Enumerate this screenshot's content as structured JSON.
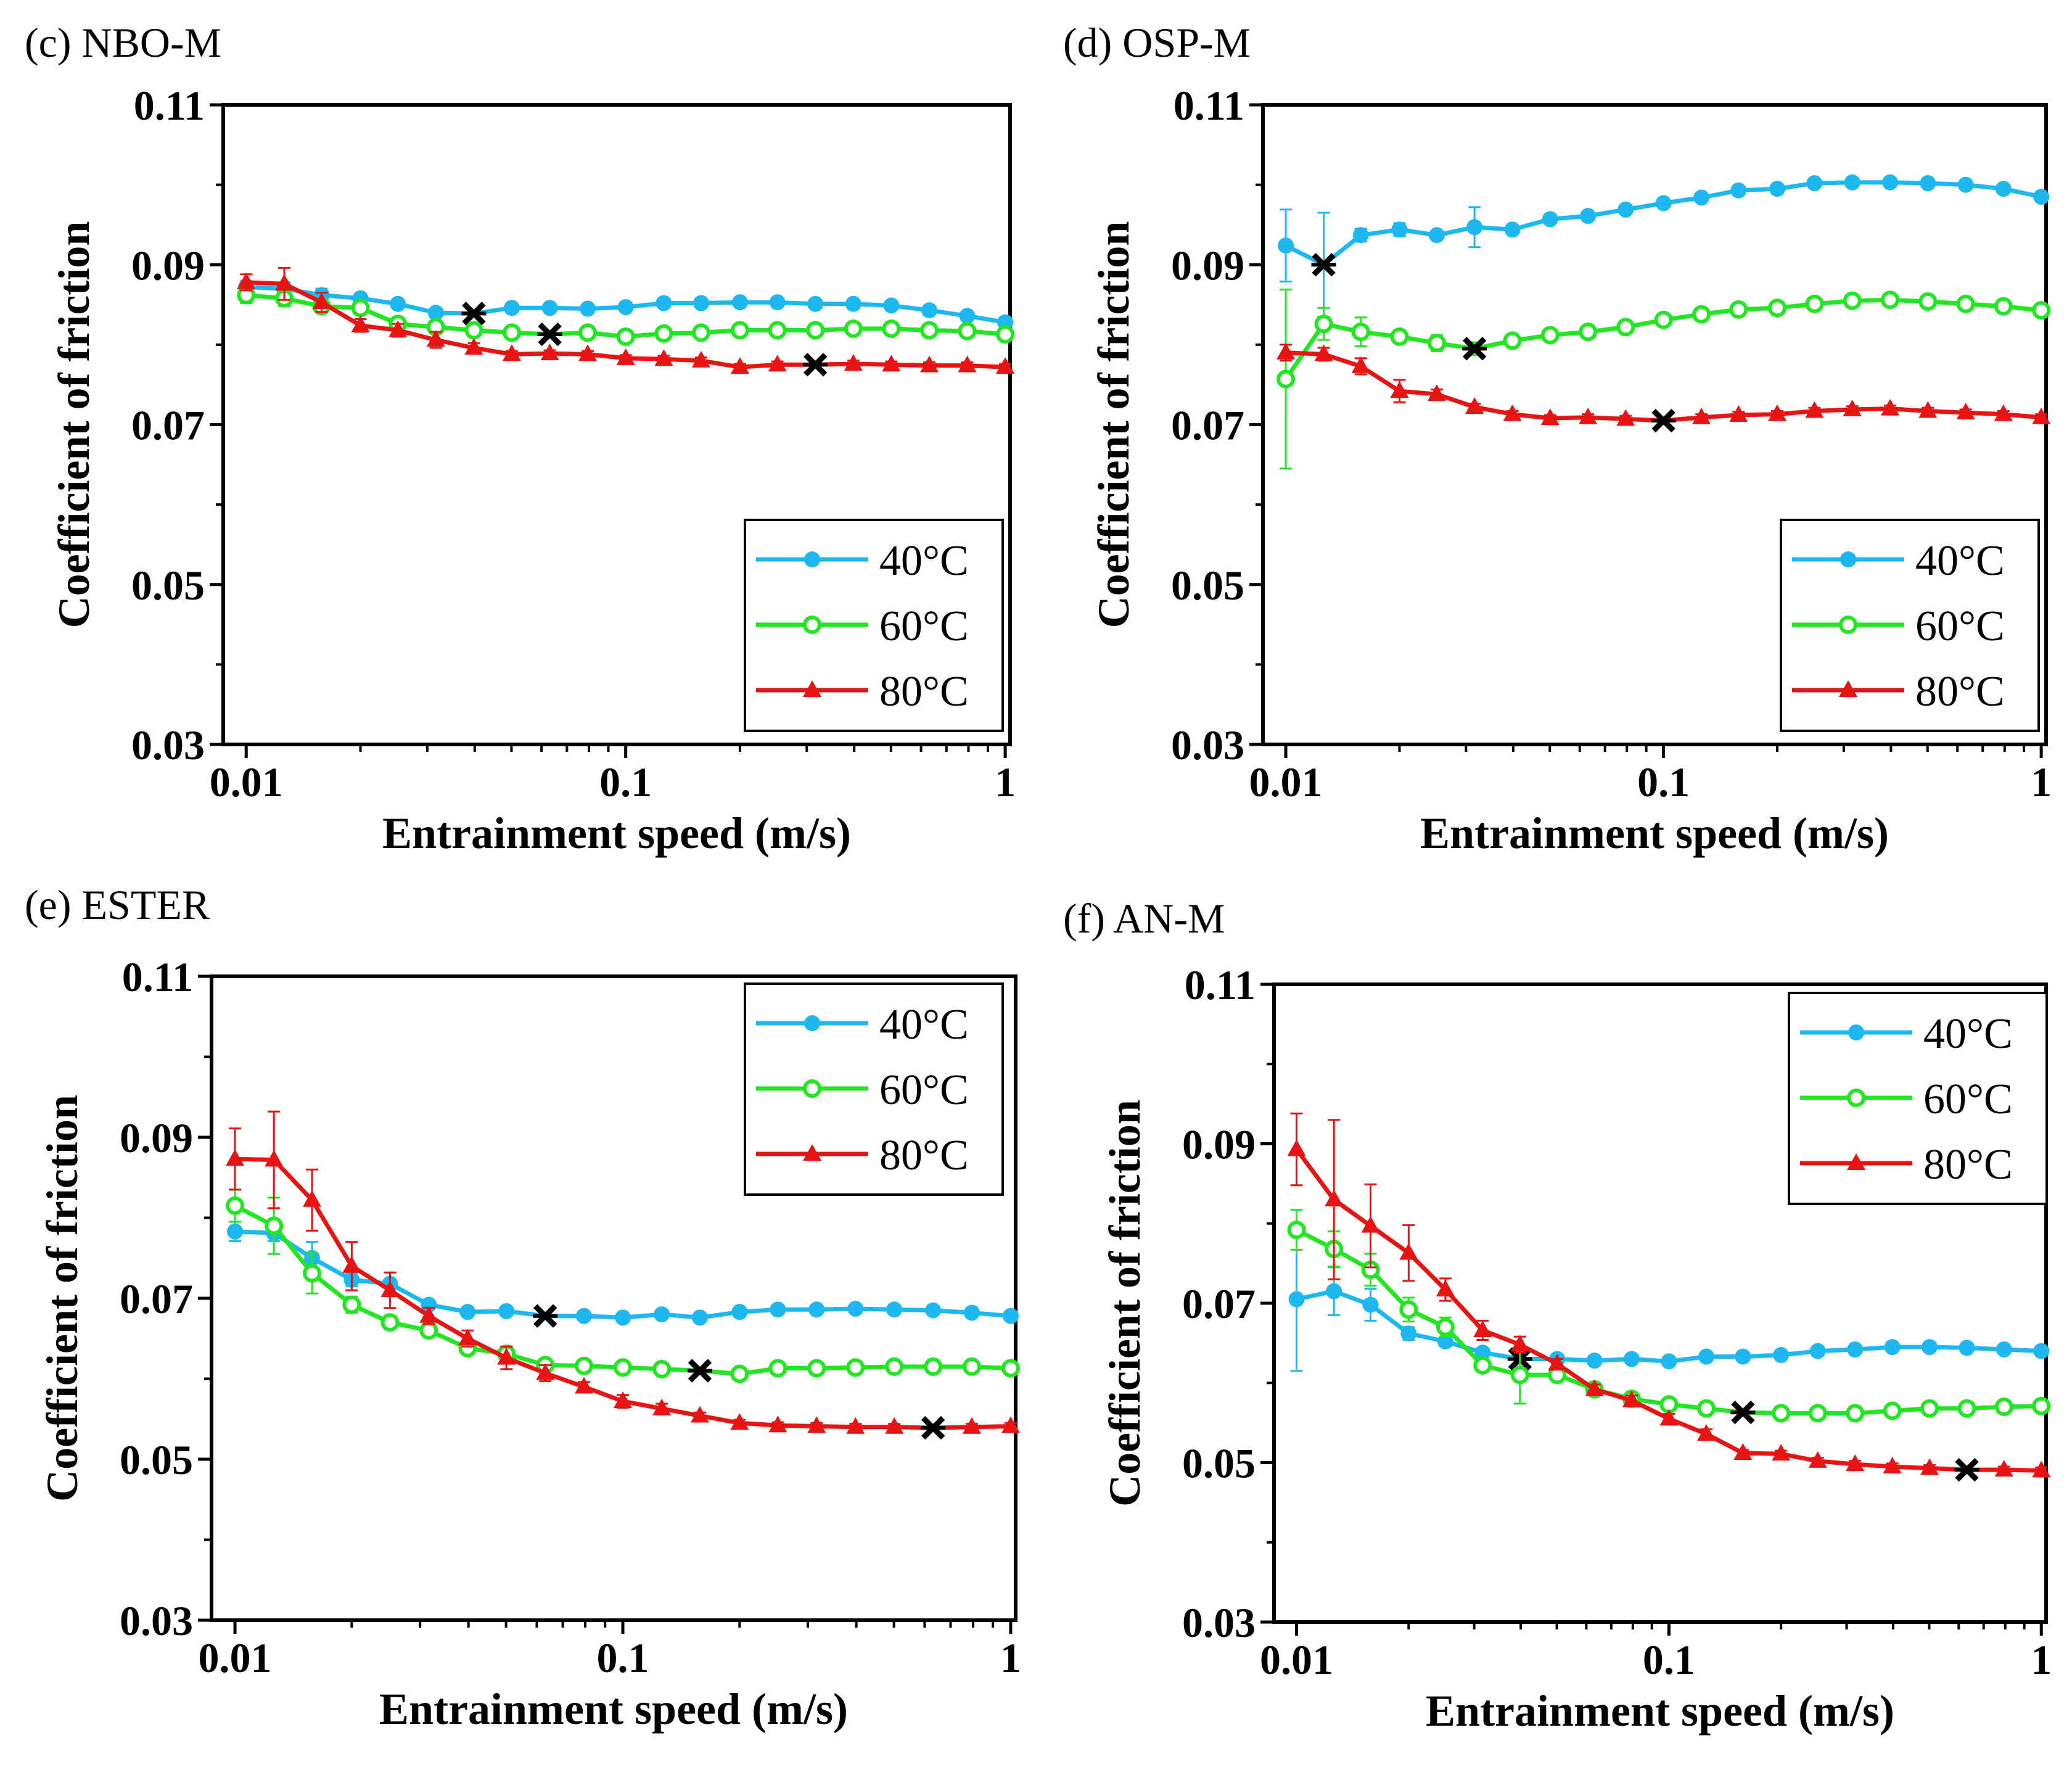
{
  "colors": {
    "s40": "#1EB8F0",
    "s60": "#22E622",
    "s80": "#E81414",
    "marker": "#000000"
  },
  "chart_data": [
    {
      "type": "line",
      "title": "(c) NBO-M",
      "xlabel": "Entrainment speed (m/s)",
      "ylabel": "Coefficient of friction",
      "xscale": "log",
      "xlim": [
        0.0087,
        1.03
      ],
      "ylim": [
        0.03,
        0.11
      ],
      "xticks": [
        0.01,
        0.1,
        1
      ],
      "xtick_labels": [
        "0.01",
        "0.1",
        "1"
      ],
      "yticks": [
        0.03,
        0.05,
        0.07,
        0.09,
        0.11
      ],
      "ytick_labels": [
        "0.03",
        "0.05",
        "0.07",
        "0.09",
        "0.11"
      ],
      "legend_position": "bottom-right",
      "x": [
        0.01,
        0.0126,
        0.0158,
        0.02,
        0.0251,
        0.0316,
        0.0398,
        0.0501,
        0.0631,
        0.0794,
        0.1,
        0.126,
        0.158,
        0.2,
        0.251,
        0.316,
        0.398,
        0.501,
        0.631,
        0.794,
        1.0
      ],
      "series": [
        {
          "name": "40°C",
          "marker": "circle",
          "values": [
            0.0872,
            0.087,
            0.0862,
            0.0858,
            0.0851,
            0.084,
            0.0839,
            0.0846,
            0.0846,
            0.0845,
            0.0847,
            0.0852,
            0.0852,
            0.0853,
            0.0853,
            0.0851,
            0.0851,
            0.0849,
            0.0843,
            0.0836,
            0.0828
          ],
          "errors": [
            0.0008,
            0.0008,
            0.0008,
            0.0006,
            0.0005,
            0.0004,
            0.0004,
            0.0004,
            0.0004,
            0.0004,
            0.0004,
            0.0004,
            0.0004,
            0.0004,
            0.0004,
            0.0004,
            0.0004,
            0.0004,
            0.0004,
            0.0004,
            0.0004
          ],
          "starred_x": 0.0398
        },
        {
          "name": "60°C",
          "marker": "open-circle",
          "values": [
            0.0862,
            0.0858,
            0.0848,
            0.0846,
            0.0826,
            0.0822,
            0.0818,
            0.0815,
            0.0813,
            0.0815,
            0.081,
            0.0814,
            0.0815,
            0.0818,
            0.0818,
            0.0818,
            0.082,
            0.082,
            0.0818,
            0.0817,
            0.0813
          ],
          "errors": [
            0.001,
            0.001,
            0.0008,
            0.0006,
            0.0005,
            0.0004,
            0.0004,
            0.0004,
            0.0004,
            0.0004,
            0.0004,
            0.0004,
            0.0004,
            0.0004,
            0.0004,
            0.0004,
            0.0004,
            0.0004,
            0.0004,
            0.0004,
            0.0004
          ],
          "starred_x": 0.0631
        },
        {
          "name": "80°C",
          "marker": "triangle",
          "values": [
            0.0878,
            0.0876,
            0.0853,
            0.0824,
            0.0818,
            0.0806,
            0.0796,
            0.0788,
            0.0789,
            0.0788,
            0.0783,
            0.0782,
            0.078,
            0.0772,
            0.0775,
            0.0775,
            0.0776,
            0.0775,
            0.0774,
            0.0774,
            0.0772
          ],
          "errors": [
            0.001,
            0.002,
            0.0012,
            0.0008,
            0.0008,
            0.001,
            0.0006,
            0.0004,
            0.0004,
            0.0004,
            0.0004,
            0.0004,
            0.0004,
            0.0004,
            0.0004,
            0.0004,
            0.0004,
            0.0004,
            0.0004,
            0.0004,
            0.0004
          ],
          "starred_x": 0.316
        }
      ]
    },
    {
      "type": "line",
      "title": "(d) OSP-M",
      "xlabel": "Entrainment speed (m/s)",
      "ylabel": "Coefficient of friction",
      "xscale": "log",
      "xlim": [
        0.0087,
        1.03
      ],
      "ylim": [
        0.03,
        0.11
      ],
      "xticks": [
        0.01,
        0.1,
        1
      ],
      "xtick_labels": [
        "0.01",
        "0.1",
        "1"
      ],
      "yticks": [
        0.03,
        0.05,
        0.07,
        0.09,
        0.11
      ],
      "ytick_labels": [
        "0.03",
        "0.05",
        "0.07",
        "0.09",
        "0.11"
      ],
      "legend_position": "bottom-right",
      "x": [
        0.01,
        0.0126,
        0.0158,
        0.02,
        0.0251,
        0.0316,
        0.0398,
        0.0501,
        0.0631,
        0.0794,
        0.1,
        0.126,
        0.158,
        0.2,
        0.251,
        0.316,
        0.398,
        0.501,
        0.631,
        0.794,
        1.0
      ],
      "series": [
        {
          "name": "40°C",
          "marker": "circle",
          "values": [
            0.0924,
            0.09,
            0.0937,
            0.0944,
            0.0937,
            0.0947,
            0.0944,
            0.0957,
            0.0961,
            0.0969,
            0.0977,
            0.0984,
            0.0993,
            0.0995,
            0.1002,
            0.1003,
            0.1003,
            0.1002,
            0.1,
            0.0995,
            0.0985
          ],
          "errors": [
            0.0045,
            0.0065,
            0.0008,
            0.0008,
            0.0004,
            0.0025,
            0.0004,
            0.0004,
            0.0004,
            0.0004,
            0.0004,
            0.0004,
            0.0004,
            0.0004,
            0.0004,
            0.0004,
            0.0004,
            0.0004,
            0.0004,
            0.0004,
            0.0004
          ],
          "starred_x": 0.0126
        },
        {
          "name": "60°C",
          "marker": "open-circle",
          "values": [
            0.0757,
            0.0826,
            0.0816,
            0.081,
            0.0802,
            0.0795,
            0.0805,
            0.0812,
            0.0816,
            0.0822,
            0.0831,
            0.0838,
            0.0844,
            0.0846,
            0.0851,
            0.0855,
            0.0856,
            0.0854,
            0.0851,
            0.0848,
            0.0843
          ],
          "errors": [
            0.0112,
            0.002,
            0.0018,
            0.0008,
            0.001,
            0.0008,
            0.0004,
            0.0004,
            0.0004,
            0.0004,
            0.0004,
            0.0004,
            0.0004,
            0.0004,
            0.0004,
            0.0004,
            0.0004,
            0.0004,
            0.0004,
            0.0004,
            0.0004
          ],
          "starred_x": 0.0316
        },
        {
          "name": "80°C",
          "marker": "triangle",
          "values": [
            0.079,
            0.0788,
            0.0773,
            0.0742,
            0.0738,
            0.0722,
            0.0713,
            0.0708,
            0.0709,
            0.0707,
            0.0705,
            0.0709,
            0.0712,
            0.0713,
            0.0717,
            0.0719,
            0.072,
            0.0717,
            0.0715,
            0.0713,
            0.0709
          ],
          "errors": [
            0.001,
            0.0008,
            0.001,
            0.0014,
            0.0006,
            0.0004,
            0.0004,
            0.0004,
            0.0004,
            0.0004,
            0.0004,
            0.0004,
            0.0004,
            0.0004,
            0.0004,
            0.0004,
            0.0004,
            0.0004,
            0.0004,
            0.0004,
            0.0004
          ],
          "starred_x": 0.1
        }
      ]
    },
    {
      "type": "line",
      "title": "(e) ESTER",
      "xlabel": "Entrainment speed (m/s)",
      "ylabel": "Coefficient of friction",
      "xscale": "log",
      "xlim": [
        0.0087,
        1.03
      ],
      "ylim": [
        0.03,
        0.11
      ],
      "xticks": [
        0.01,
        0.1,
        1
      ],
      "xtick_labels": [
        "0.01",
        "0.1",
        "1"
      ],
      "yticks": [
        0.03,
        0.05,
        0.07,
        0.09,
        0.11
      ],
      "ytick_labels": [
        "0.03",
        "0.05",
        "0.07",
        "0.09",
        "0.11"
      ],
      "legend_position": "top-right",
      "x": [
        0.01,
        0.0126,
        0.0158,
        0.02,
        0.0251,
        0.0316,
        0.0398,
        0.0501,
        0.0631,
        0.0794,
        0.1,
        0.126,
        0.158,
        0.2,
        0.251,
        0.316,
        0.398,
        0.501,
        0.631,
        0.794,
        1.0
      ],
      "series": [
        {
          "name": "40°C",
          "marker": "circle",
          "values": [
            0.0783,
            0.0781,
            0.075,
            0.0723,
            0.0718,
            0.0692,
            0.0683,
            0.0684,
            0.0678,
            0.0678,
            0.0676,
            0.068,
            0.0676,
            0.0683,
            0.0686,
            0.0686,
            0.0687,
            0.0686,
            0.0685,
            0.0682,
            0.0678
          ],
          "errors": [
            0.0012,
            0.001,
            0.002,
            0.0008,
            0.0005,
            0.0004,
            0.0004,
            0.0004,
            0.0004,
            0.0004,
            0.0004,
            0.0004,
            0.0004,
            0.0004,
            0.0004,
            0.0004,
            0.0004,
            0.0004,
            0.0004,
            0.0004,
            0.0004
          ],
          "starred_x": 0.0631
        },
        {
          "name": "60°C",
          "marker": "open-circle",
          "values": [
            0.0815,
            0.079,
            0.0731,
            0.0692,
            0.067,
            0.066,
            0.0638,
            0.0631,
            0.0617,
            0.0616,
            0.0614,
            0.0612,
            0.061,
            0.0606,
            0.0613,
            0.0613,
            0.0614,
            0.0615,
            0.0615,
            0.0615,
            0.0613
          ],
          "errors": [
            0.002,
            0.0035,
            0.0025,
            0.001,
            0.0008,
            0.0006,
            0.0004,
            0.0004,
            0.0004,
            0.0004,
            0.0004,
            0.0004,
            0.0004,
            0.0004,
            0.0004,
            0.0004,
            0.0004,
            0.0004,
            0.0004,
            0.0004,
            0.0004
          ],
          "starred_x": 0.158
        },
        {
          "name": "80°C",
          "marker": "triangle",
          "values": [
            0.0873,
            0.0872,
            0.0822,
            0.074,
            0.071,
            0.0678,
            0.065,
            0.0626,
            0.0607,
            0.059,
            0.0572,
            0.0563,
            0.0554,
            0.0545,
            0.0542,
            0.0541,
            0.054,
            0.054,
            0.0539,
            0.054,
            0.0541
          ],
          "errors": [
            0.0038,
            0.006,
            0.0038,
            0.003,
            0.0022,
            0.001,
            0.001,
            0.0014,
            0.001,
            0.0006,
            0.0008,
            0.0006,
            0.0004,
            0.0004,
            0.0004,
            0.0004,
            0.0004,
            0.0004,
            0.0004,
            0.0004,
            0.0004
          ],
          "starred_x": 0.631
        }
      ]
    },
    {
      "type": "line",
      "title": "(f) AN-M",
      "xlabel": "Entrainment speed (m/s)",
      "ylabel": "Coefficient of friction",
      "xscale": "log",
      "xlim": [
        0.0087,
        1.03
      ],
      "ylim": [
        0.03,
        0.11
      ],
      "xticks": [
        0.01,
        0.1,
        1
      ],
      "xtick_labels": [
        "0.01",
        "0.1",
        "1"
      ],
      "yticks": [
        0.03,
        0.05,
        0.07,
        0.09,
        0.11
      ],
      "ytick_labels": [
        "0.03",
        "0.05",
        "0.07",
        "0.09",
        "0.11"
      ],
      "legend_position": "top-right",
      "x": [
        0.01,
        0.0126,
        0.0158,
        0.02,
        0.0251,
        0.0316,
        0.0398,
        0.0501,
        0.0631,
        0.0794,
        0.1,
        0.126,
        0.158,
        0.2,
        0.251,
        0.316,
        0.398,
        0.501,
        0.631,
        0.794,
        1.0
      ],
      "series": [
        {
          "name": "40°C",
          "marker": "circle",
          "values": [
            0.0705,
            0.0715,
            0.0698,
            0.0662,
            0.0652,
            0.0638,
            0.063,
            0.063,
            0.0628,
            0.063,
            0.0627,
            0.0633,
            0.0633,
            0.0635,
            0.064,
            0.0642,
            0.0645,
            0.0645,
            0.0644,
            0.0642,
            0.064
          ],
          "errors": [
            0.009,
            0.003,
            0.002,
            0.0008,
            0.0006,
            0.0004,
            0.0004,
            0.0004,
            0.0004,
            0.0004,
            0.0004,
            0.0004,
            0.0004,
            0.0004,
            0.0004,
            0.0004,
            0.0004,
            0.0004,
            0.0004,
            0.0004,
            0.0004
          ],
          "starred_x": 0.0398
        },
        {
          "name": "60°C",
          "marker": "open-circle",
          "values": [
            0.0792,
            0.0768,
            0.0742,
            0.0692,
            0.067,
            0.0622,
            0.061,
            0.061,
            0.0592,
            0.058,
            0.0573,
            0.0568,
            0.0563,
            0.0562,
            0.0562,
            0.0562,
            0.0565,
            0.0568,
            0.0568,
            0.057,
            0.0571
          ],
          "errors": [
            0.0025,
            0.0022,
            0.002,
            0.0015,
            0.0012,
            0.0008,
            0.0036,
            0.0006,
            0.0006,
            0.0006,
            0.0004,
            0.0004,
            0.0004,
            0.0004,
            0.0004,
            0.0004,
            0.0004,
            0.0004,
            0.0004,
            0.0004,
            0.0004
          ],
          "starred_x": 0.158
        },
        {
          "name": "80°C",
          "marker": "triangle",
          "values": [
            0.0893,
            0.083,
            0.0797,
            0.0763,
            0.0717,
            0.0666,
            0.0648,
            0.0624,
            0.0592,
            0.0578,
            0.0555,
            0.0536,
            0.0512,
            0.0511,
            0.0502,
            0.0498,
            0.0495,
            0.0493,
            0.0491,
            0.0491,
            0.049
          ],
          "errors": [
            0.0045,
            0.01,
            0.0052,
            0.0035,
            0.0014,
            0.0012,
            0.001,
            0.0006,
            0.0006,
            0.0006,
            0.0006,
            0.0006,
            0.0004,
            0.0004,
            0.0004,
            0.0004,
            0.0004,
            0.0004,
            0.0004,
            0.0004,
            0.0004
          ],
          "starred_x": 0.631
        }
      ]
    }
  ]
}
